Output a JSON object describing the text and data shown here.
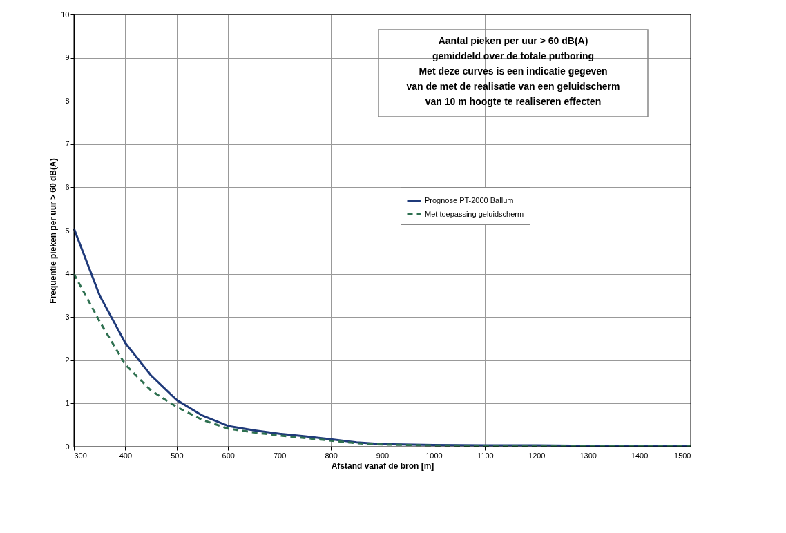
{
  "chart_data": {
    "type": "line",
    "xlabel": "Afstand vanaf de bron [m]",
    "ylabel": "Frequentie pieken per uur > 60 dB(A)",
    "annotations": [
      "Aantal pieken per uur > 60 dB(A)\ngemiddeld over de totale putboring\nMet deze curves is een indicatie gegeven\nvan de met de realisatie van een geluidscherm\nvan 10 m hoogte te realiseren effecten"
    ],
    "x": [
      300,
      350,
      400,
      450,
      500,
      550,
      600,
      650,
      700,
      750,
      800,
      850,
      900,
      1000,
      1100,
      1200,
      1300,
      1400,
      1500
    ],
    "series": [
      {
        "name": "Prognose PT-2000 Ballum",
        "color": "#1f3a7a",
        "line_style": "solid",
        "values": [
          5.05,
          3.5,
          2.4,
          1.65,
          1.08,
          0.72,
          0.48,
          0.38,
          0.3,
          0.24,
          0.17,
          0.1,
          0.06,
          0.04,
          0.03,
          0.03,
          0.02,
          0.01,
          0.01
        ]
      },
      {
        "name": "Met toepassing geluidscherm",
        "color": "#2e7050",
        "line_style": "dashed",
        "values": [
          4.0,
          2.9,
          1.9,
          1.3,
          0.92,
          0.62,
          0.42,
          0.33,
          0.26,
          0.2,
          0.14,
          0.08,
          0.05,
          0.03,
          0.02,
          0.02,
          0.01,
          0.01,
          0.01
        ]
      }
    ],
    "xlim": [
      300,
      1500
    ],
    "xticks": [
      300,
      400,
      500,
      600,
      700,
      800,
      900,
      1000,
      1100,
      1200,
      1300,
      1400,
      1500
    ],
    "ylim": [
      0,
      10
    ],
    "yticks": [
      0,
      1,
      2,
      3,
      4,
      5,
      6,
      7,
      8,
      9,
      10
    ],
    "grid": true,
    "legend": "top right",
    "marker": "none"
  }
}
